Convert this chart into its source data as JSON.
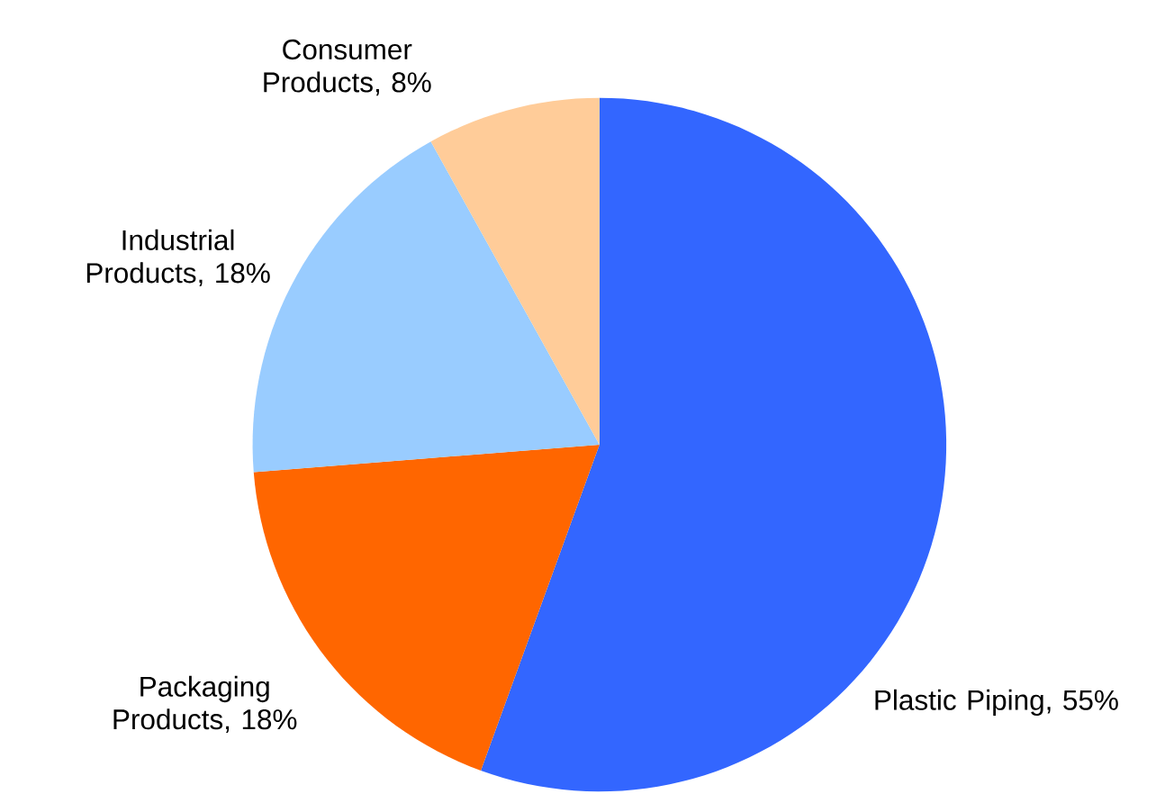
{
  "chart_data": {
    "type": "pie",
    "categories": [
      "Plastic Piping, 55%",
      "Packaging Products, 18%",
      "Industrial Products, 18%",
      "Consumer Products, 8%"
    ],
    "values": [
      55,
      18,
      18,
      8
    ],
    "colors": [
      "#3366ff",
      "#ff6600",
      "#99ccff",
      "#ffcc99"
    ]
  }
}
